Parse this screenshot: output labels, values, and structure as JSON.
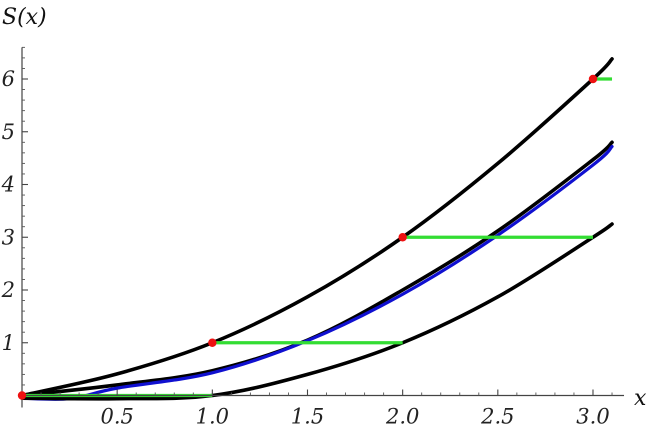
{
  "chart_data": {
    "type": "line",
    "title": "",
    "xlabel": "x",
    "ylabel": "S(x)",
    "xlim": [
      0,
      3.1
    ],
    "ylim": [
      -0.1,
      6.6
    ],
    "x_ticks": [
      0.5,
      1.0,
      1.5,
      2.0,
      2.5,
      3.0
    ],
    "x_tick_labels": [
      "0.5",
      "1.0",
      "1.5",
      "2.0",
      "2.5",
      "3.0"
    ],
    "y_ticks": [
      1,
      2,
      3,
      4,
      5,
      6
    ],
    "y_tick_labels": [
      "1",
      "2",
      "3",
      "4",
      "5",
      "6"
    ],
    "grid": false,
    "series": [
      {
        "color": "#000000",
        "x": [
          0,
          0.5,
          1.0,
          1.5,
          2.0,
          2.5,
          3.0,
          3.1
        ],
        "values": [
          0,
          0.41,
          1.0,
          1.87,
          3.0,
          4.4,
          6.0,
          6.38
        ]
      },
      {
        "color": "#000000",
        "x": [
          0,
          0.5,
          1.0,
          1.5,
          2.0,
          2.5,
          3.0,
          3.1
        ],
        "values": [
          0,
          0.2,
          0.47,
          1.05,
          2.0,
          3.12,
          4.47,
          4.8
        ]
      },
      {
        "color": "#1010d0",
        "x": [
          0,
          0.25,
          0.5,
          1.0,
          1.5,
          2.0,
          2.5,
          3.0,
          3.1
        ],
        "values": [
          -0.05,
          -0.06,
          0.14,
          0.43,
          1.04,
          1.92,
          3.04,
          4.37,
          4.72
        ]
      },
      {
        "color": "#000000",
        "x": [
          0,
          0.5,
          1.0,
          1.5,
          2.0,
          2.5,
          3.0,
          3.1
        ],
        "values": [
          -0.05,
          -0.06,
          0.0,
          0.4,
          1.0,
          1.87,
          3.0,
          3.25
        ]
      }
    ],
    "steps": [
      {
        "color": "#33dd33",
        "x_start": 0.0,
        "x_end": 1.0,
        "value": 0
      },
      {
        "color": "#33dd33",
        "x_start": 1.0,
        "x_end": 2.0,
        "value": 1
      },
      {
        "color": "#33dd33",
        "x_start": 2.0,
        "x_end": 3.0,
        "value": 3
      },
      {
        "color": "#33dd33",
        "x_start": 3.0,
        "x_end": 3.1,
        "value": 6
      }
    ],
    "points": {
      "color": "#ee1111",
      "x": [
        0,
        1,
        2,
        3
      ],
      "values": [
        0,
        1,
        3,
        6
      ]
    }
  }
}
